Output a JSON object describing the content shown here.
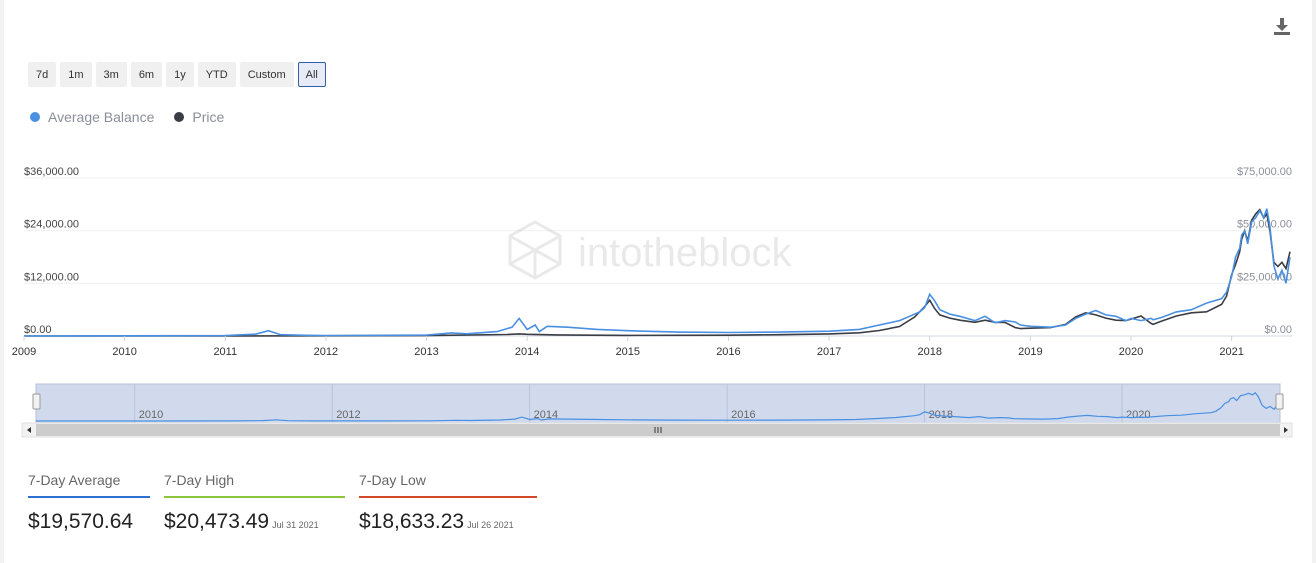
{
  "ranges": [
    "7d",
    "1m",
    "3m",
    "6m",
    "1y",
    "YTD",
    "Custom",
    "All"
  ],
  "active_range": "All",
  "watermark": "intotheblock",
  "legend": [
    {
      "label": "Average Balance",
      "color": "#4a90e2"
    },
    {
      "label": "Price",
      "color": "#3a3d45"
    }
  ],
  "stats": [
    {
      "label": "7-Day Average",
      "value": "$19,570.64",
      "date": "",
      "color": "#2f6fd0"
    },
    {
      "label": "7-Day High",
      "value": "$20,473.49",
      "date": "Jul 31 2021",
      "color": "#8cc63f"
    },
    {
      "label": "7-Day Low",
      "value": "$18,633.23",
      "date": "Jul 26 2021",
      "color": "#d04a2a"
    }
  ],
  "chart_data": {
    "type": "line",
    "title": "",
    "x_ticks": [
      "2009",
      "2010",
      "2011",
      "2012",
      "2013",
      "2014",
      "2015",
      "2016",
      "2017",
      "2018",
      "2019",
      "2020",
      "2021"
    ],
    "navigator_ticks": [
      "2010",
      "2012",
      "2014",
      "2016",
      "2018",
      "2020"
    ],
    "left_axis": {
      "ticks": [
        "$0.00",
        "$12,000.00",
        "$24,000.00",
        "$36,000.00"
      ],
      "range": [
        0,
        36000
      ]
    },
    "right_axis": {
      "ticks": [
        "$0.00",
        "$25,000.00",
        "$50,000.00",
        "$75,000.00"
      ],
      "range": [
        0,
        75000
      ]
    },
    "x_range": [
      2009.0,
      2021.6
    ],
    "series": [
      {
        "name": "Average Balance",
        "axis": "left",
        "color": "#4a90e2",
        "x": [
          2009.0,
          2010.0,
          2011.0,
          2011.3,
          2011.43,
          2011.55,
          2011.8,
          2012.0,
          2013.0,
          2013.25,
          2013.4,
          2013.7,
          2013.85,
          2013.92,
          2014.0,
          2014.08,
          2014.12,
          2014.2,
          2014.4,
          2014.7,
          2015.0,
          2015.5,
          2016.0,
          2016.5,
          2017.0,
          2017.3,
          2017.5,
          2017.7,
          2017.8,
          2017.9,
          2017.95,
          2018.0,
          2018.05,
          2018.1,
          2018.2,
          2018.3,
          2018.45,
          2018.55,
          2018.65,
          2018.75,
          2018.85,
          2018.9,
          2019.0,
          2019.2,
          2019.35,
          2019.45,
          2019.55,
          2019.65,
          2019.75,
          2019.85,
          2019.95,
          2020.0,
          2020.1,
          2020.2,
          2020.22,
          2020.3,
          2020.45,
          2020.6,
          2020.75,
          2020.9,
          2020.95,
          2021.0,
          2021.04,
          2021.08,
          2021.1,
          2021.13,
          2021.16,
          2021.2,
          2021.24,
          2021.28,
          2021.32,
          2021.35,
          2021.38,
          2021.42,
          2021.46,
          2021.5,
          2021.54,
          2021.58
        ],
        "y": [
          0,
          50,
          80,
          400,
          1200,
          300,
          150,
          120,
          200,
          700,
          500,
          1000,
          2000,
          4000,
          1500,
          2500,
          1000,
          2200,
          2000,
          1500,
          1200,
          900,
          800,
          900,
          1100,
          1500,
          2500,
          3500,
          4500,
          5500,
          6500,
          9500,
          8000,
          6000,
          5000,
          4500,
          3500,
          4500,
          3000,
          3500,
          3200,
          2500,
          2200,
          2000,
          2500,
          4000,
          5000,
          5800,
          4800,
          4500,
          3500,
          4000,
          3500,
          4000,
          3700,
          4200,
          5500,
          6000,
          7500,
          8500,
          10000,
          13500,
          18000,
          20000,
          23000,
          24000,
          21000,
          26000,
          27000,
          28500,
          27000,
          29000,
          25000,
          16000,
          13000,
          15000,
          12000,
          18000
        ]
      },
      {
        "name": "Price",
        "axis": "right",
        "color": "#3a3d45",
        "x": [
          2009.0,
          2010.5,
          2011.0,
          2013.0,
          2013.8,
          2013.92,
          2014.0,
          2014.3,
          2015.0,
          2016.0,
          2016.5,
          2017.0,
          2017.3,
          2017.5,
          2017.7,
          2017.85,
          2017.95,
          2018.0,
          2018.05,
          2018.1,
          2018.2,
          2018.3,
          2018.45,
          2018.55,
          2018.65,
          2018.75,
          2018.85,
          2018.9,
          2019.0,
          2019.2,
          2019.35,
          2019.45,
          2019.55,
          2019.65,
          2019.75,
          2019.85,
          2019.95,
          2020.0,
          2020.1,
          2020.2,
          2020.22,
          2020.3,
          2020.45,
          2020.6,
          2020.75,
          2020.9,
          2020.95,
          2021.0,
          2021.04,
          2021.08,
          2021.1,
          2021.13,
          2021.16,
          2021.2,
          2021.24,
          2021.28,
          2021.32,
          2021.35,
          2021.38,
          2021.42,
          2021.46,
          2021.5,
          2021.54,
          2021.58
        ],
        "y": [
          0,
          0,
          0,
          200,
          700,
          1000,
          800,
          500,
          300,
          400,
          600,
          1000,
          1500,
          2600,
          4500,
          9000,
          14000,
          17000,
          13000,
          10000,
          8500,
          7500,
          6500,
          7500,
          6500,
          6400,
          4000,
          3500,
          3700,
          4000,
          5500,
          9000,
          11000,
          10000,
          8500,
          7500,
          7300,
          8000,
          9500,
          6000,
          5500,
          7000,
          9500,
          11000,
          11500,
          15000,
          19000,
          29000,
          34000,
          40000,
          46000,
          50000,
          45000,
          55000,
          58000,
          60000,
          56000,
          58000,
          50000,
          35000,
          33000,
          35000,
          32000,
          40000
        ]
      }
    ],
    "navigator_series": "Average Balance",
    "grid": true,
    "legend_position": "top-left"
  }
}
